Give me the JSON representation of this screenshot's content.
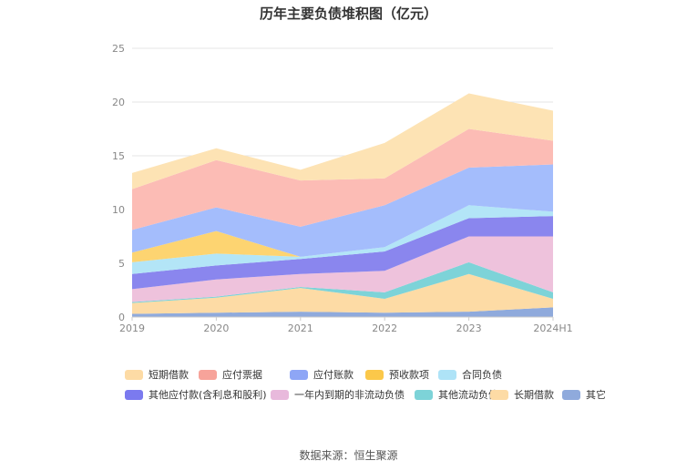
{
  "chart_data": {
    "type": "area",
    "stacked": true,
    "title": "历年主要负债堆积图（亿元）",
    "categories": [
      "2019",
      "2020",
      "2021",
      "2022",
      "2023",
      "2024H1"
    ],
    "y_ticks": [
      "0",
      "5",
      "10",
      "15",
      "20",
      "25"
    ],
    "ylim": [
      0,
      25
    ],
    "grid": true,
    "legend_position": "bottom",
    "series": [
      {
        "name": "其它",
        "color": "#8faadc",
        "values": [
          0.3,
          0.4,
          0.5,
          0.4,
          0.5,
          0.9
        ]
      },
      {
        "name": "长期借款",
        "color": "#fddba5",
        "values": [
          1.0,
          1.4,
          2.2,
          1.3,
          3.5,
          0.8
        ]
      },
      {
        "name": "其他流动负债",
        "color": "#7dd3d8",
        "values": [
          0.1,
          0.1,
          0.1,
          0.6,
          1.1,
          0.6
        ]
      },
      {
        "name": "一年内到期的非流动负债",
        "color": "#eec2dc",
        "values": [
          1.2,
          1.6,
          1.2,
          2.0,
          2.4,
          5.2
        ]
      },
      {
        "name": "其他应付款(含利息和股利)",
        "color": "#8a86ee",
        "values": [
          1.4,
          1.3,
          1.4,
          1.8,
          1.7,
          1.9
        ]
      },
      {
        "name": "合同负债",
        "color": "#b3e5f7",
        "values": [
          1.1,
          1.1,
          0.2,
          0.4,
          1.2,
          0.4
        ]
      },
      {
        "name": "预收款项",
        "color": "#fdd471",
        "values": [
          0.9,
          2.1,
          0.0,
          0.0,
          0.0,
          0.0
        ]
      },
      {
        "name": "应付账款",
        "color": "#a4bdfc",
        "values": [
          2.1,
          2.2,
          2.8,
          3.9,
          3.5,
          4.4
        ]
      },
      {
        "name": "应付票据",
        "color": "#fcbcb5",
        "values": [
          3.8,
          4.4,
          4.3,
          2.5,
          3.6,
          2.2
        ]
      },
      {
        "name": "短期借款",
        "color": "#fde3b4",
        "values": [
          1.5,
          1.1,
          1.0,
          3.3,
          3.3,
          2.8
        ]
      }
    ]
  },
  "legend": [
    {
      "label": "短期借款",
      "color": "#fddba5"
    },
    {
      "label": "应付票据",
      "color": "#f7a39a"
    },
    {
      "label": "应付账款",
      "color": "#8ea6f6"
    },
    {
      "label": "预收款项",
      "color": "#fbc84a"
    },
    {
      "label": "合同负债",
      "color": "#aee3f7"
    },
    {
      "label": "其他应付款(含利息和股利)",
      "color": "#7b7aef"
    },
    {
      "label": "一年内到期的非流动负债",
      "color": "#e8b9dc"
    },
    {
      "label": "其他流动负债",
      "color": "#7dd3d8"
    },
    {
      "label": "长期借款",
      "color": "#fddba5"
    },
    {
      "label": "其它",
      "color": "#8faadc"
    }
  ],
  "source_text": "数据来源：恒生聚源"
}
